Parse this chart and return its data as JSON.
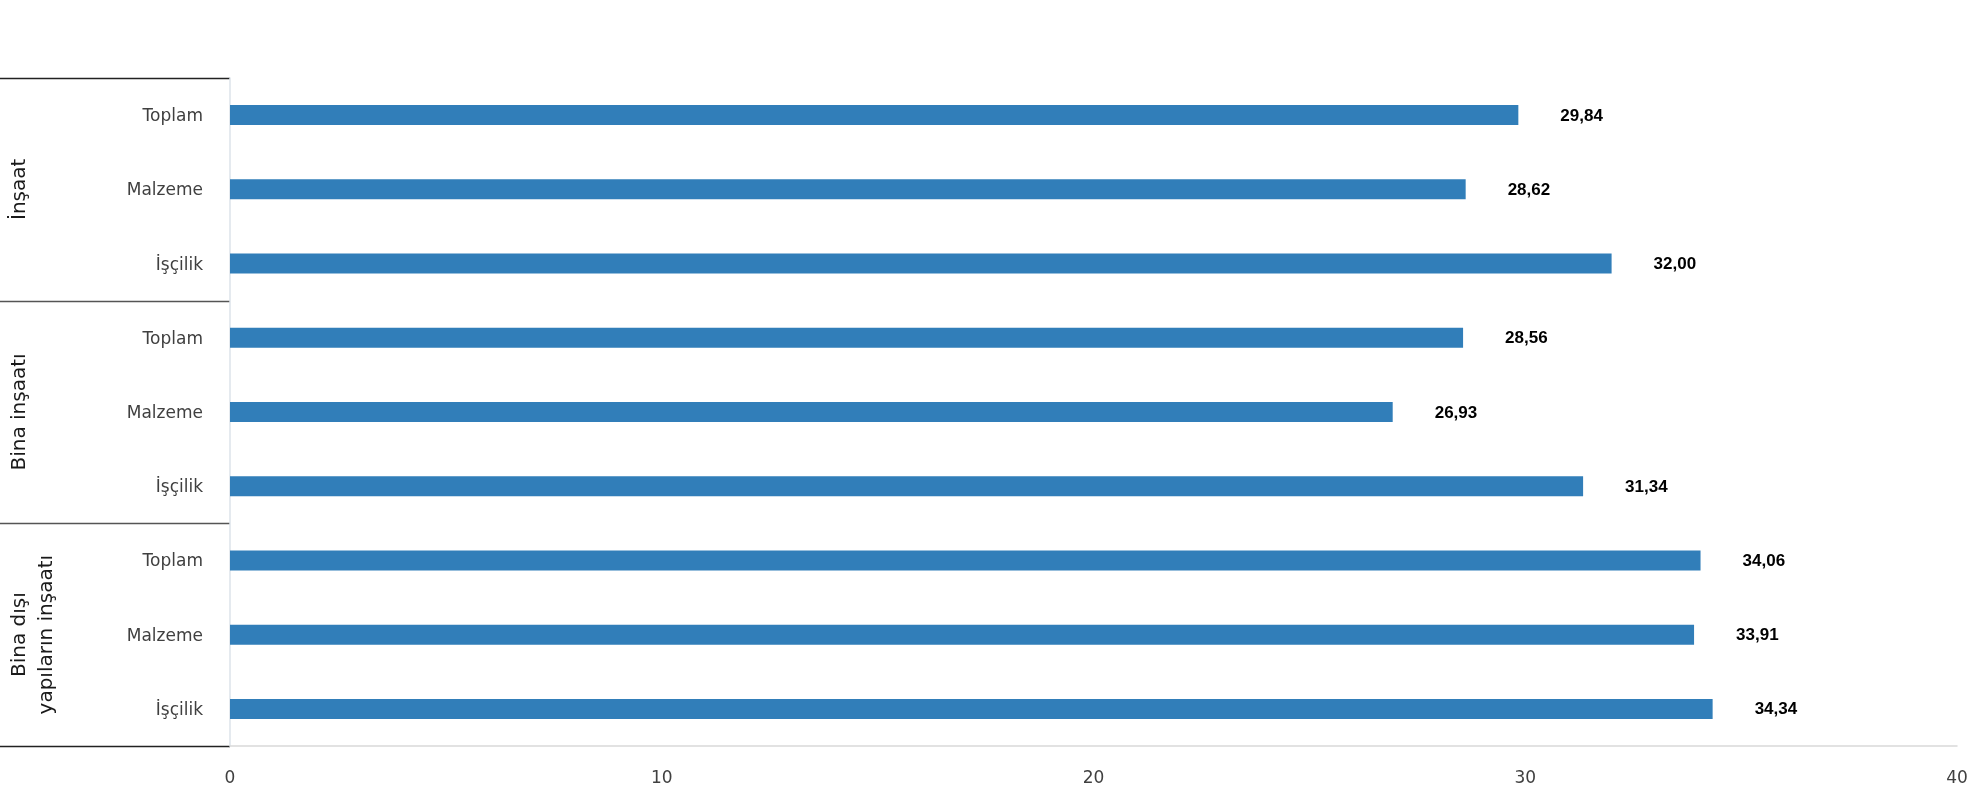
{
  "chart_data": {
    "type": "bar",
    "orientation": "horizontal",
    "categories": [
      "Toplam",
      "Malzeme",
      "İşçilik",
      "Toplam",
      "Malzeme",
      "İşçilik",
      "Toplam",
      "Malzeme",
      "İşçilik"
    ],
    "values": [
      29.84,
      28.62,
      32.0,
      28.56,
      26.93,
      31.34,
      34.06,
      33.91,
      34.34
    ],
    "value_labels": [
      "29,84",
      "28,62",
      "32,00",
      "28,56",
      "26,93",
      "31,34",
      "34,06",
      "33,91",
      "34,34"
    ],
    "color": "#317eb9",
    "xlim": [
      0,
      40
    ],
    "xticks": [
      0,
      10,
      20,
      30,
      40
    ],
    "grid": false,
    "annotations": [
      "İnşaat",
      "Bina inşaatı",
      "Bina dışı yapıların inşaatı"
    ]
  }
}
